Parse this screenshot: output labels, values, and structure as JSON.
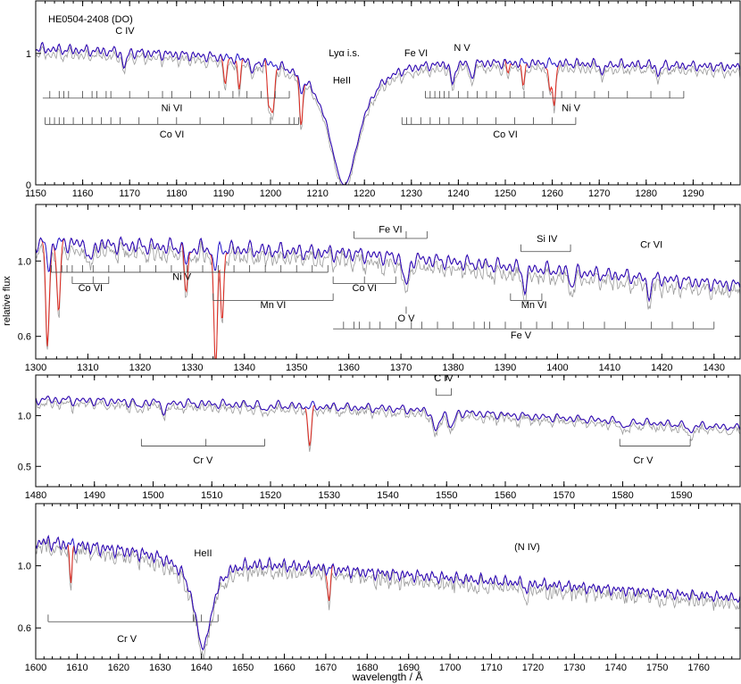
{
  "figure": {
    "ylabel": "relative flux",
    "xlabel": "wavelength / Å",
    "star_label": "HE0504-2408 (DO)"
  },
  "colors": {
    "observed": "#9a9a9a",
    "model": "#1f0fc8",
    "interstellar": "#e0291f",
    "axis": "#000000"
  },
  "chart_data": [
    {
      "type": "line",
      "title": "HE0504-2408 (DO)",
      "xlim": [
        1150,
        1300
      ],
      "ylim": [
        0,
        1.4
      ],
      "x_ticks": [
        1150,
        1160,
        1170,
        1180,
        1190,
        1200,
        1210,
        1220,
        1230,
        1240,
        1250,
        1260,
        1270,
        1280,
        1290
      ],
      "y_ticks": [
        {
          "value": 0,
          "label": "0"
        },
        {
          "value": 1,
          "label": "1"
        }
      ],
      "continuum": [
        [
          1150,
          1.04
        ],
        [
          1200,
          0.98
        ],
        [
          1300,
          0.9
        ]
      ],
      "noise": 0.025,
      "model_lines": [
        {
          "x": 1215.7,
          "depth": 1.0,
          "width": 4.0,
          "type": "lorentz"
        },
        {
          "x": 1168.9,
          "depth": 0.12,
          "width": 0.4
        },
        {
          "x": 1238.8,
          "depth": 0.18,
          "width": 0.4
        },
        {
          "x": 1242.8,
          "depth": 0.12,
          "width": 0.4
        },
        {
          "x": 1196.3,
          "depth": 0.1,
          "width": 0.4
        },
        {
          "x": 1206.5,
          "depth": 0.12,
          "width": 0.4
        },
        {
          "x": 1270.8,
          "depth": 0.08,
          "width": 0.4
        },
        {
          "x": 1282.6,
          "depth": 0.08,
          "width": 0.4
        }
      ],
      "ism_lines": [
        {
          "x": 1190.4,
          "depth": 0.22,
          "width": 0.3
        },
        {
          "x": 1193.3,
          "depth": 0.25,
          "width": 0.3
        },
        {
          "x": 1199.6,
          "depth": 0.3,
          "width": 0.3
        },
        {
          "x": 1200.2,
          "depth": 0.3,
          "width": 0.3
        },
        {
          "x": 1200.7,
          "depth": 0.25,
          "width": 0.3
        },
        {
          "x": 1206.5,
          "depth": 0.35,
          "width": 0.3
        },
        {
          "x": 1250.6,
          "depth": 0.08,
          "width": 0.3
        },
        {
          "x": 1253.8,
          "depth": 0.2,
          "width": 0.3
        },
        {
          "x": 1259.5,
          "depth": 0.25,
          "width": 0.3
        },
        {
          "x": 1260.4,
          "depth": 0.35,
          "width": 0.3
        }
      ],
      "labels": [
        {
          "text": "C IV",
          "x": 1169,
          "y": 1.15
        },
        {
          "text": "Lyα i.s.",
          "x": 1215.7,
          "y": 0.98
        },
        {
          "text": "HeII",
          "x": 1215.2,
          "y": 0.77
        },
        {
          "text": "Fe VI",
          "x": 1231,
          "y": 0.98
        },
        {
          "text": "N V",
          "x": 1240.8,
          "y": 1.02
        },
        {
          "text": "Ni VI",
          "x": 1179,
          "y": 0.56
        },
        {
          "text": "Co VI",
          "x": 1179,
          "y": 0.36
        },
        {
          "text": "Ni V",
          "x": 1264,
          "y": 0.56
        },
        {
          "text": "Co VI",
          "x": 1250,
          "y": 0.36
        }
      ],
      "ticksets": [
        {
          "x0": 1151.5,
          "x1": 1204,
          "y": 0.66,
          "ticks": [
            1153,
            1155,
            1156,
            1157,
            1160,
            1162,
            1163,
            1165,
            1166,
            1170,
            1174,
            1177,
            1179,
            1183,
            1187,
            1189,
            1192,
            1195,
            1198,
            1201,
            1204
          ]
        },
        {
          "x0": 1152,
          "x1": 1206,
          "y": 0.46,
          "ticks": [
            1152,
            1153,
            1154,
            1155,
            1156,
            1158,
            1160,
            1162,
            1164,
            1166,
            1168,
            1172,
            1176,
            1180,
            1185,
            1190,
            1196,
            1200,
            1204,
            1205,
            1206
          ]
        },
        {
          "x0": 1233,
          "x1": 1288,
          "y": 0.66,
          "ticks": [
            1233,
            1234,
            1235,
            1236,
            1237,
            1238,
            1240,
            1242,
            1244,
            1246,
            1248,
            1251,
            1254,
            1258,
            1262,
            1265,
            1269,
            1272,
            1276,
            1281,
            1285,
            1288
          ]
        },
        {
          "x0": 1228,
          "x1": 1265,
          "y": 0.46,
          "ticks": [
            1228,
            1229,
            1230,
            1232,
            1234,
            1236,
            1238,
            1241,
            1244,
            1248,
            1252,
            1256,
            1260,
            1265
          ]
        }
      ]
    },
    {
      "type": "line",
      "xlim": [
        1300,
        1435
      ],
      "ylim": [
        0.48,
        1.3
      ],
      "x_ticks": [
        1300,
        1310,
        1320,
        1330,
        1340,
        1350,
        1360,
        1370,
        1380,
        1390,
        1400,
        1410,
        1420,
        1430
      ],
      "y_ticks": [
        {
          "value": 0.6,
          "label": "0.6"
        },
        {
          "value": 1.0,
          "label": "1.0"
        }
      ],
      "continuum": [
        [
          1300,
          1.1
        ],
        [
          1360,
          1.04
        ],
        [
          1435,
          0.87
        ]
      ],
      "noise": 0.035,
      "model_lines": [
        {
          "x": 1302.5,
          "depth": 0.12,
          "width": 0.4
        },
        {
          "x": 1310.5,
          "depth": 0.1,
          "width": 0.4
        },
        {
          "x": 1329,
          "depth": 0.08,
          "width": 0.4
        },
        {
          "x": 1334.3,
          "depth": 0.1,
          "width": 0.4
        },
        {
          "x": 1371,
          "depth": 0.15,
          "width": 0.5
        },
        {
          "x": 1393.8,
          "depth": 0.12,
          "width": 0.4
        },
        {
          "x": 1402.8,
          "depth": 0.08,
          "width": 0.4
        },
        {
          "x": 1417.5,
          "depth": 0.1,
          "width": 0.4
        }
      ],
      "ism_lines": [
        {
          "x": 1302.2,
          "depth": 0.45,
          "width": 0.3
        },
        {
          "x": 1304.4,
          "depth": 0.35,
          "width": 0.3
        },
        {
          "x": 1328.8,
          "depth": 0.15,
          "width": 0.3
        },
        {
          "x": 1334.5,
          "depth": 0.55,
          "width": 0.3
        },
        {
          "x": 1335.7,
          "depth": 0.35,
          "width": 0.3
        }
      ],
      "labels": [
        {
          "text": "Fe VI",
          "x": 1368,
          "y": 1.15
        },
        {
          "text": "Si IV",
          "x": 1398,
          "y": 1.1
        },
        {
          "text": "Cr VI",
          "x": 1418,
          "y": 1.07
        },
        {
          "text": "Ni V",
          "x": 1328,
          "y": 0.9
        },
        {
          "text": "Co VI",
          "x": 1310.5,
          "y": 0.84
        },
        {
          "text": "Co VI",
          "x": 1363,
          "y": 0.84
        },
        {
          "text": "Mn VI",
          "x": 1345.5,
          "y": 0.75
        },
        {
          "text": "Mn VI",
          "x": 1395.5,
          "y": 0.75
        },
        {
          "text": "O V",
          "x": 1371,
          "y": 0.68
        },
        {
          "text": "Fe V",
          "x": 1393,
          "y": 0.59
        }
      ],
      "ticksets": [
        {
          "x0": 1361,
          "x1": 1375,
          "y": 1.12,
          "ticks": [
            1361,
            1371,
            1375
          ]
        },
        {
          "x0": 1393,
          "x1": 1402.5,
          "y": 1.05,
          "ticks": [
            1393,
            1402.5
          ]
        },
        {
          "x0": 1303,
          "x1": 1356,
          "y": 0.94,
          "ticks": [
            1303,
            1305,
            1306,
            1307,
            1309,
            1311,
            1314,
            1317,
            1320,
            1323,
            1326,
            1329,
            1332,
            1335,
            1338,
            1341,
            1344,
            1347,
            1350,
            1353,
            1356
          ]
        },
        {
          "x0": 1307,
          "x1": 1314,
          "y": 0.88,
          "ticks": [
            1307,
            1311,
            1314
          ]
        },
        {
          "x0": 1357,
          "x1": 1369,
          "y": 0.88,
          "ticks": [
            1357,
            1363,
            1369
          ]
        },
        {
          "x0": 1334,
          "x1": 1357,
          "y": 0.79,
          "ticks": [
            1334,
            1357
          ]
        },
        {
          "x0": 1391,
          "x1": 1397,
          "y": 0.79,
          "ticks": [
            1391,
            1397
          ]
        },
        {
          "x0": 1371,
          "x1": 1371,
          "y": 0.72,
          "ticks": [
            1371
          ]
        },
        {
          "x0": 1357,
          "x1": 1430,
          "y": 0.64,
          "ticks": [
            1359,
            1361,
            1362,
            1364,
            1366,
            1369,
            1372,
            1374,
            1377,
            1380,
            1384,
            1386,
            1387,
            1390,
            1393,
            1396,
            1399,
            1402,
            1405,
            1409,
            1413,
            1418,
            1422,
            1426,
            1430
          ]
        }
      ]
    },
    {
      "type": "line",
      "xlim": [
        1480,
        1600
      ],
      "ylim": [
        0.3,
        1.4
      ],
      "x_ticks": [
        1480,
        1490,
        1500,
        1510,
        1520,
        1530,
        1540,
        1550,
        1560,
        1570,
        1580,
        1590
      ],
      "y_ticks": [
        {
          "value": 0.5,
          "label": "0.5"
        },
        {
          "value": 1.0,
          "label": "1.0"
        }
      ],
      "continuum": [
        [
          1480,
          1.16
        ],
        [
          1540,
          1.07
        ],
        [
          1600,
          0.88
        ]
      ],
      "noise": 0.04,
      "model_lines": [
        {
          "x": 1497.5,
          "depth": 0.05,
          "width": 0.4
        },
        {
          "x": 1502,
          "depth": 0.08,
          "width": 0.4
        },
        {
          "x": 1519,
          "depth": 0.05,
          "width": 0.4
        },
        {
          "x": 1548.2,
          "depth": 0.2,
          "width": 0.5
        },
        {
          "x": 1550.8,
          "depth": 0.15,
          "width": 0.5
        },
        {
          "x": 1580.5,
          "depth": 0.08,
          "width": 0.4
        },
        {
          "x": 1591.5,
          "depth": 0.08,
          "width": 0.4
        }
      ],
      "ism_lines": [
        {
          "x": 1526.7,
          "depth": 0.35,
          "width": 0.3
        }
      ],
      "labels": [
        {
          "text": "C IV",
          "x": 1549.5,
          "y": 1.34
        },
        {
          "text": "Cr V",
          "x": 1508.5,
          "y": 0.53
        },
        {
          "text": "Cr V",
          "x": 1583.5,
          "y": 0.53
        }
      ],
      "ticksets": [
        {
          "x0": 1548.2,
          "x1": 1550.8,
          "y": 1.2,
          "ticks": [
            1548.2,
            1550.8
          ]
        },
        {
          "x0": 1498,
          "x1": 1519,
          "y": 0.7,
          "ticks": [
            1498,
            1509,
            1519
          ]
        },
        {
          "x0": 1579.5,
          "x1": 1591.5,
          "y": 0.7,
          "ticks": [
            1579.5,
            1591.5
          ]
        }
      ]
    },
    {
      "type": "line",
      "xlim": [
        1600,
        1770
      ],
      "ylim": [
        0.4,
        1.4
      ],
      "x_ticks": [
        1600,
        1610,
        1620,
        1630,
        1640,
        1650,
        1660,
        1670,
        1680,
        1690,
        1700,
        1710,
        1720,
        1730,
        1740,
        1750,
        1760
      ],
      "y_ticks": [
        {
          "value": 0.6,
          "label": "0.6"
        },
        {
          "value": 1.0,
          "label": "1.0"
        }
      ],
      "continuum": [
        [
          1600,
          1.16
        ],
        [
          1680,
          0.96
        ],
        [
          1770,
          0.79
        ]
      ],
      "noise": 0.045,
      "model_lines": [
        {
          "x": 1640.4,
          "depth": 0.55,
          "width": 2.6,
          "type": "lorentz"
        },
        {
          "x": 1718.6,
          "depth": 0.06,
          "width": 0.4
        }
      ],
      "ism_lines": [
        {
          "x": 1608.5,
          "depth": 0.22,
          "width": 0.3
        },
        {
          "x": 1670.8,
          "depth": 0.22,
          "width": 0.3
        }
      ],
      "labels": [
        {
          "text": "HeII",
          "x": 1640.4,
          "y": 1.06
        },
        {
          "text": "(N IV)",
          "x": 1718.6,
          "y": 1.1
        },
        {
          "text": "Cr V",
          "x": 1622,
          "y": 0.51
        }
      ],
      "ticksets": [
        {
          "x0": 1603,
          "x1": 1644,
          "y": 0.64,
          "ticks": [
            1603,
            1638,
            1640,
            1644
          ]
        }
      ]
    }
  ]
}
